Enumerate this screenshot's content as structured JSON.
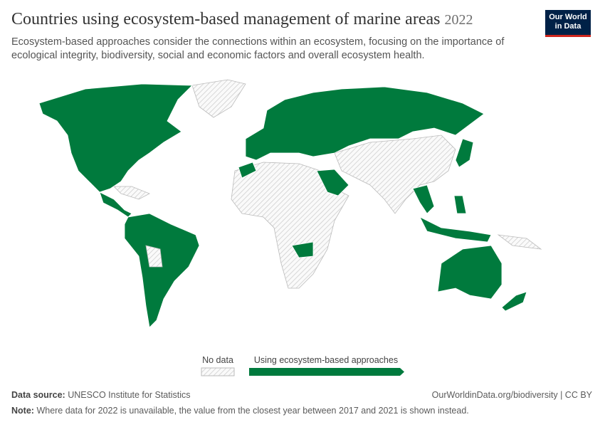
{
  "header": {
    "title": "Countries using ecosystem-based management of marine areas",
    "year": "2022",
    "subtitle": "Ecosystem-based approaches consider the connections within an ecosystem, focusing on the importance of ecological integrity, biodiversity, social and economic factors and overall ecosystem health."
  },
  "logo": {
    "line1": "Our World",
    "line2": "in Data"
  },
  "legend": {
    "items": [
      "No data",
      "Using ecosystem-based approaches"
    ]
  },
  "footer": {
    "source_label": "Data source:",
    "source": "UNESCO Institute for Statistics",
    "link": "OurWorldinData.org/biodiversity | CC BY",
    "note_label": "Note:",
    "note": "Where data for 2022 is unavailable, the value from the closest year between 2017 and 2021 is shown instead."
  }
}
